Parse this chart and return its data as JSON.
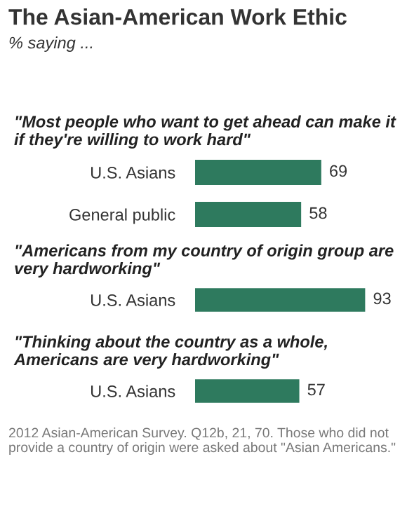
{
  "chart_data": [
    {
      "type": "bar",
      "orientation": "horizontal",
      "title": "The Asian-American Work Ethic",
      "subtitle": "% saying ...",
      "annotations": [
        "\"Most people who want to get ahead can make it if they're willing to work hard\""
      ],
      "categories": [
        "U.S. Asians",
        "General public"
      ],
      "values": [
        69,
        58
      ],
      "color": "#2e7a5e",
      "data_labels": true
    },
    {
      "type": "bar",
      "orientation": "horizontal",
      "annotations": [
        "\"Americans from my country of origin group are very hardworking\""
      ],
      "categories": [
        "U.S. Asians"
      ],
      "values": [
        93
      ],
      "color": "#2e7a5e",
      "data_labels": true
    },
    {
      "type": "bar",
      "orientation": "horizontal",
      "annotations": [
        "\"Thinking about the country as a whole, Americans are very hardworking\"",
        "2012 Asian-American Survey. Q12b, 21, 70. Those who did not provide a country of origin were asked about \"Asian Americans.\""
      ],
      "categories": [
        "U.S. Asians"
      ],
      "values": [
        57
      ],
      "color": "#2e7a5e",
      "data_labels": true
    }
  ]
}
